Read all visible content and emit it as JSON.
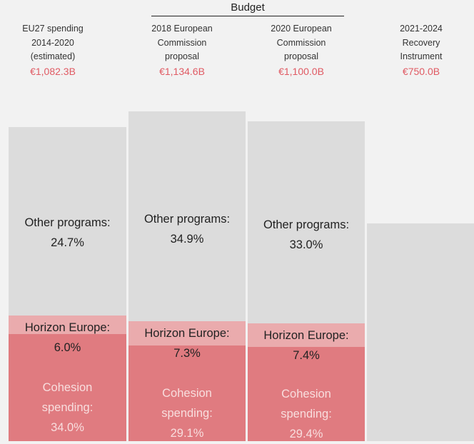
{
  "header": {
    "group_label": "Budget"
  },
  "colors": {
    "other": "#dcdcdc",
    "horizon": "#eaabad",
    "cohesion": "#e07b80",
    "accent": "#e05a63",
    "other_text": "#222222",
    "cohesion_text": "#f8dede"
  },
  "chart_data": {
    "type": "bar",
    "stacked": true,
    "unit": "billion EUR",
    "categories": [
      {
        "lines": [
          "EU27 spending",
          "2014-2020",
          "(estimated)"
        ],
        "total_label": "€1,082.3B",
        "total": 1082.3
      },
      {
        "lines": [
          "2018 European",
          "Commission",
          "proposal"
        ],
        "total_label": "€1,134.6B",
        "total": 1134.6
      },
      {
        "lines": [
          "2020 European",
          "Commission",
          "proposal"
        ],
        "total_label": "€1,100.0B",
        "total": 1100.0
      },
      {
        "lines": [
          "2021-2024",
          "Recovery",
          "Instrument"
        ],
        "total_label": "€750.0B",
        "total": 750.0
      }
    ],
    "series": [
      {
        "key": "cohesion",
        "label": [
          "Cohesion",
          "spending:"
        ],
        "values": [
          34.0,
          29.1,
          29.4,
          null
        ],
        "value_labels": [
          "34.0%",
          "29.1%",
          "29.4%",
          ""
        ]
      },
      {
        "key": "horizon",
        "label": [
          "Horizon Europe:"
        ],
        "values": [
          6.0,
          7.3,
          7.4,
          null
        ],
        "value_labels": [
          "6.0%",
          "7.3%",
          "7.4%",
          ""
        ]
      },
      {
        "key": "other",
        "label": [
          "Other programs:"
        ],
        "values": [
          24.7,
          34.9,
          33.0,
          null
        ],
        "value_labels": [
          "24.7%",
          "34.9%",
          "33.0%",
          ""
        ]
      }
    ]
  }
}
